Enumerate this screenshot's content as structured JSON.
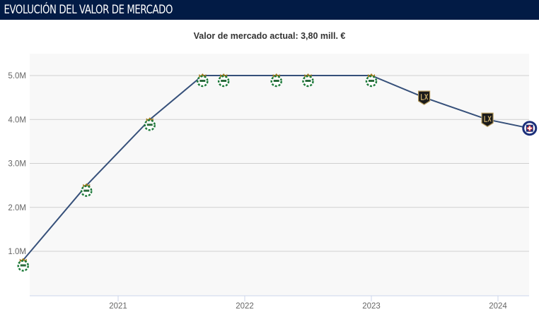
{
  "header": {
    "title": "EVOLUCIÓN DEL VALOR DE MERCADO"
  },
  "chart_data": {
    "type": "line",
    "title": "Valor de mercado actual: 3,80 mill. €",
    "xlabel": "",
    "ylabel": "",
    "x_ticks": [
      "2021",
      "2022",
      "2023",
      "2024"
    ],
    "y_ticks": [
      "1.0M",
      "2.0M",
      "3.0M",
      "4.0M",
      "5.0M"
    ],
    "ylim": [
      0,
      5.5
    ],
    "xlim": [
      "2020-04",
      "2024-05"
    ],
    "grid": true,
    "line_color": "#36507a",
    "points": [
      {
        "date": "2020-04",
        "value": 0.8,
        "club": "santos-laguna"
      },
      {
        "date": "2020-10",
        "value": 2.5,
        "club": "santos-laguna"
      },
      {
        "date": "2021-04",
        "value": 4.0,
        "club": "santos-laguna"
      },
      {
        "date": "2021-09",
        "value": 5.0,
        "club": "santos-laguna"
      },
      {
        "date": "2021-11",
        "value": 5.0,
        "club": "santos-laguna"
      },
      {
        "date": "2022-04",
        "value": 5.0,
        "club": "santos-laguna"
      },
      {
        "date": "2022-07",
        "value": 5.0,
        "club": "santos-laguna"
      },
      {
        "date": "2023-01",
        "value": 5.0,
        "club": "santos-laguna"
      },
      {
        "date": "2023-06",
        "value": 4.5,
        "club": "lafc"
      },
      {
        "date": "2023-12",
        "value": 4.0,
        "club": "lafc"
      },
      {
        "date": "2024-04",
        "value": 3.8,
        "club": "cruz-azul"
      }
    ]
  }
}
